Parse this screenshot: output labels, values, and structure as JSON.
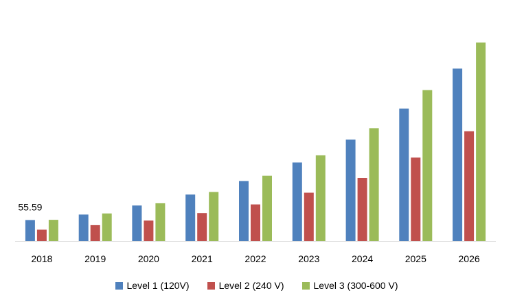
{
  "chart_data": {
    "type": "bar",
    "categories": [
      "2018",
      "2019",
      "2020",
      "2021",
      "2022",
      "2023",
      "2024",
      "2025",
      "2026"
    ],
    "series": [
      {
        "name": "Level 1 (120V)",
        "color": "#4f81bd",
        "values": [
          55.59,
          70,
          94,
          123,
          159,
          208,
          269,
          351,
          457
        ]
      },
      {
        "name": "Level 2 (240 V)",
        "color": "#c0504d",
        "values": [
          30,
          42,
          54,
          74,
          97,
          128,
          167,
          221,
          291
        ]
      },
      {
        "name": "Level 3 (300-600 V)",
        "color": "#9bbb59",
        "values": [
          56,
          73,
          100,
          130,
          173,
          227,
          299,
          400,
          526
        ]
      }
    ],
    "data_labels": [
      {
        "series": 0,
        "index": 0,
        "text": "55.59"
      }
    ],
    "ylim": [
      0,
      530
    ],
    "grid": false,
    "legend_position": "bottom",
    "title": "",
    "xlabel": "",
    "ylabel": ""
  }
}
